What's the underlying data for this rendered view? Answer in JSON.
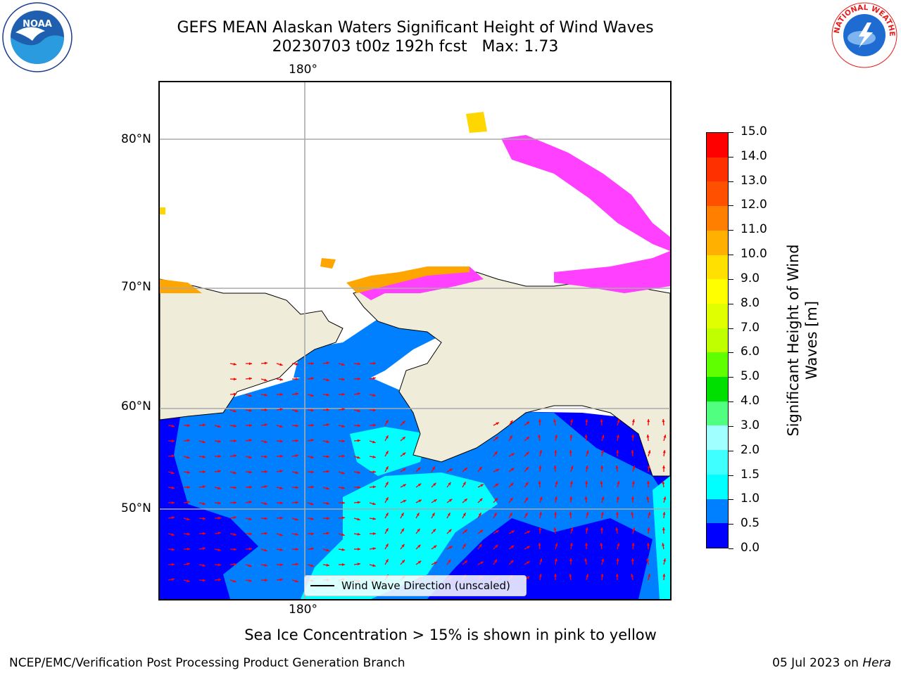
{
  "title": {
    "line1": "GEFS MEAN Alaskan Waters Significant Height of Wind Waves",
    "line2": "20230703 t00z 192h fcst   Max: 1.73"
  },
  "map": {
    "lon_label_top": "180°",
    "lon_label_bottom": "180°",
    "lat_labels": [
      "80°N",
      "70°N",
      "60°N",
      "50°N"
    ],
    "land_color": "#efedda",
    "ocean_low_color": "#0000ff",
    "ocean_mid_color": "#0080ff",
    "ocean_high_color": "#00ffff",
    "ice_colors": [
      "#ff40ff",
      "#ffa500",
      "#ffd700"
    ],
    "arrow_color": "#ff0000"
  },
  "legend": {
    "text": "Wind Wave Direction (unscaled)"
  },
  "colorbar": {
    "title_line1": "Significant Height of Wind",
    "title_line2": "Waves [m]",
    "ticks": [
      "0.0",
      "0.5",
      "1.0",
      "1.5",
      "2.0",
      "3.0",
      "4.0",
      "5.0",
      "6.0",
      "7.0",
      "8.0",
      "9.0",
      "10.0",
      "11.0",
      "12.0",
      "13.0",
      "14.0",
      "15.0"
    ],
    "colors": [
      "#0000ff",
      "#0080ff",
      "#00ffff",
      "#40ffff",
      "#a0ffff",
      "#50ff80",
      "#00e000",
      "#60ff00",
      "#c0ff00",
      "#e0ff00",
      "#ffff00",
      "#ffe000",
      "#ffb000",
      "#ff8000",
      "#ff5000",
      "#ff3000",
      "#ff0000"
    ]
  },
  "footer": {
    "note": "Sea Ice Concentration > 15% is shown in pink to yellow",
    "left": "NCEP/EMC/Verification Post Processing Product Generation Branch",
    "right_prefix": "05 Jul 2023 on ",
    "right_system": "Hera"
  },
  "logos": {
    "left": "NOAA",
    "right": "NATIONAL WEATHER SERVICE"
  }
}
